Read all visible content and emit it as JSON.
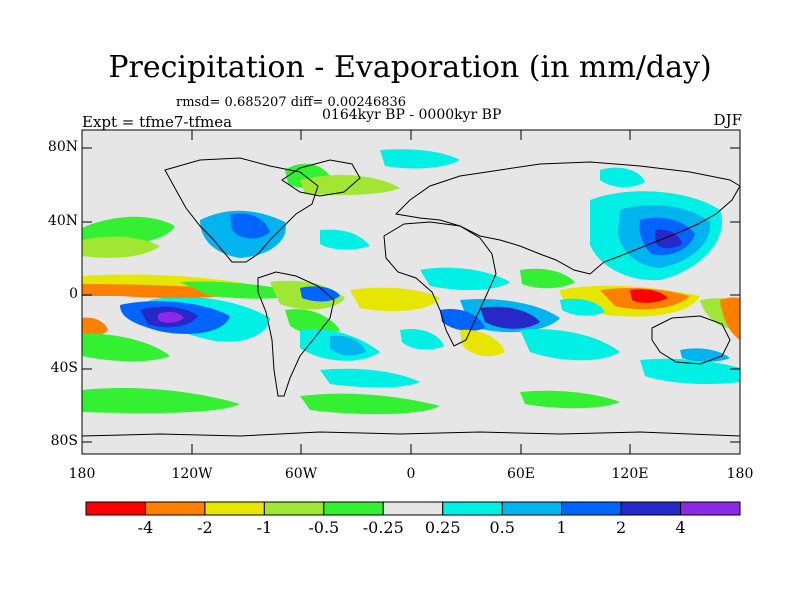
{
  "title": "Precipitation - Evaporation (in mm/day)",
  "stats": "rmsd= 0.685207 diff= 0.00246836",
  "period": "0164kyr BP - 0000kyr BP",
  "experiment": "Expt = tfme7-tfmea",
  "season": "DJF",
  "y_ticks": [
    "80N",
    "40N",
    "0",
    "40S",
    "80S"
  ],
  "x_ticks": [
    "180",
    "120W",
    "60W",
    "0",
    "60E",
    "120E",
    "180"
  ],
  "colorbar": {
    "colors": [
      "#ff0000",
      "#ff8000",
      "#e6e600",
      "#a0e632",
      "#33f033",
      "#e6e6e6",
      "#00f0e6",
      "#00b4f0",
      "#0064ff",
      "#2828c8",
      "#8c28e6"
    ],
    "labels": [
      "-4",
      "-2",
      "-1",
      "-0.5",
      "-0.25",
      "0.25",
      "0.5",
      "1",
      "2",
      "4"
    ]
  }
}
